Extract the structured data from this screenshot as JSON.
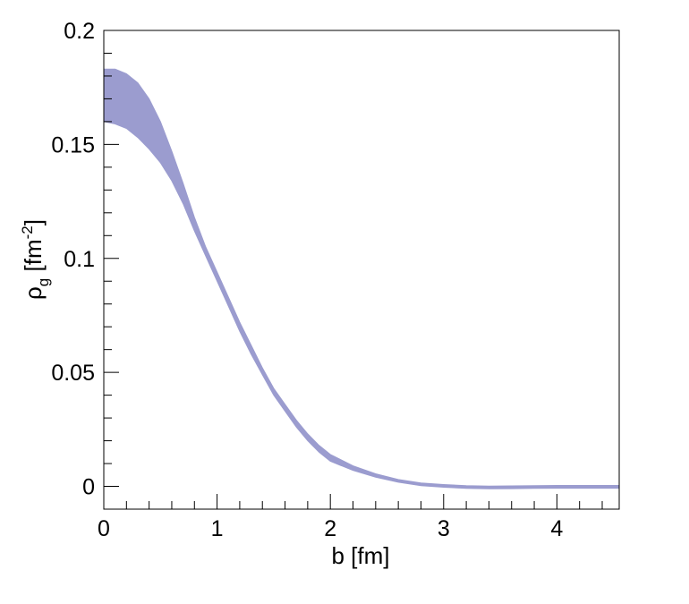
{
  "chart_data": {
    "type": "area",
    "title": "",
    "xlabel": "b [fm]",
    "ylabel": {
      "main": "ρ",
      "sub": "g",
      "unit_open": " [fm",
      "sup": "-2",
      "unit_close": "]"
    },
    "xlim": [
      0,
      4.55
    ],
    "ylim": [
      -0.01,
      0.2
    ],
    "x_major_ticks": [
      0,
      1,
      2,
      3,
      4
    ],
    "x_tick_labels": [
      "0",
      "1",
      "2",
      "3",
      "4"
    ],
    "y_major_ticks": [
      0,
      0.05,
      0.1,
      0.15,
      0.2
    ],
    "y_tick_labels": [
      "0",
      "0.05",
      "0.1",
      "0.15",
      "0.2"
    ],
    "grid": false,
    "band_color": "#9b9ccf",
    "series": [
      {
        "x": [
          0,
          0.1,
          0.2,
          0.3,
          0.4,
          0.5,
          0.6,
          0.7,
          0.8,
          0.9,
          1.0,
          1.1,
          1.2,
          1.3,
          1.4,
          1.5,
          1.6,
          1.7,
          1.8,
          1.9,
          2.0,
          2.2,
          2.4,
          2.6,
          2.8,
          3.0,
          3.2,
          3.4,
          3.6,
          3.8,
          4.0,
          4.2,
          4.4,
          4.55
        ],
        "upper": [
          0.183,
          0.183,
          0.181,
          0.177,
          0.17,
          0.16,
          0.147,
          0.133,
          0.118,
          0.105,
          0.094,
          0.083,
          0.072,
          0.062,
          0.052,
          0.043,
          0.036,
          0.029,
          0.023,
          0.018,
          0.014,
          0.009,
          0.0055,
          0.003,
          0.0015,
          0.0008,
          0.0003,
          0.0001,
          0.0002,
          0.0003,
          0.0004,
          0.0004,
          0.0004,
          0.0004
        ],
        "lower": [
          0.16,
          0.159,
          0.157,
          0.153,
          0.148,
          0.142,
          0.134,
          0.124,
          0.112,
          0.101,
          0.09,
          0.079,
          0.068,
          0.058,
          0.049,
          0.04,
          0.033,
          0.026,
          0.02,
          0.015,
          0.011,
          0.007,
          0.004,
          0.002,
          0.0008,
          0.0,
          -0.0004,
          -0.0006,
          -0.0004,
          -0.0003,
          -0.0003,
          -0.0003,
          -0.0003,
          -0.0003
        ]
      }
    ]
  }
}
